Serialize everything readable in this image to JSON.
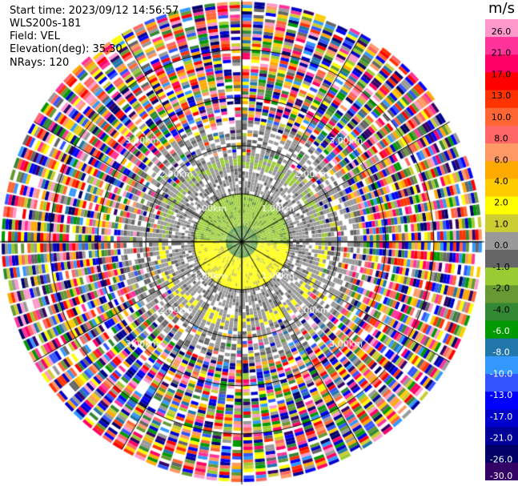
{
  "header": {
    "start_time": "Start time: 2023/09/12 14:56:57",
    "instrument": "WLS200s-181",
    "field": "Field: VEL",
    "elevation": "Elevation(deg): 35.30",
    "nrays": "NRays: 120"
  },
  "chart_data": {
    "type": "heatmap",
    "projection": "polar PPI",
    "field": "VEL",
    "nrays": 120,
    "range_rings_km": [
      1.0,
      2.0,
      3.0
    ],
    "range_labels": [
      "1.00km",
      "2.00km",
      "3.00km"
    ],
    "colorbar": {
      "unit": "m/s",
      "ticks": [
        "26.0",
        "21.0",
        "17.0",
        "13.0",
        "10.0",
        "8.0",
        "6.0",
        "4.0",
        "2.0",
        "1.0",
        "0.0",
        "-1.0",
        "-2.0",
        "-4.0",
        "-6.0",
        "-8.0",
        "-10.0",
        "-13.0",
        "-17.0",
        "-21.0",
        "-26.0",
        "-30.0"
      ],
      "colors": [
        "#ff99cc",
        "#ff3399",
        "#ff0066",
        "#ff0000",
        "#ff3300",
        "#ff6633",
        "#ff6666",
        "#ff9966",
        "#ffaa00",
        "#ffcc00",
        "#ffff00",
        "#cccc33",
        "#999999",
        "#666666",
        "#99cc33",
        "#669933",
        "#338833",
        "#009900",
        "#2277aa",
        "#3399ff",
        "#3355ff",
        "#0000ff",
        "#0000cc",
        "#000099",
        "#000066",
        "#330066"
      ]
    }
  }
}
